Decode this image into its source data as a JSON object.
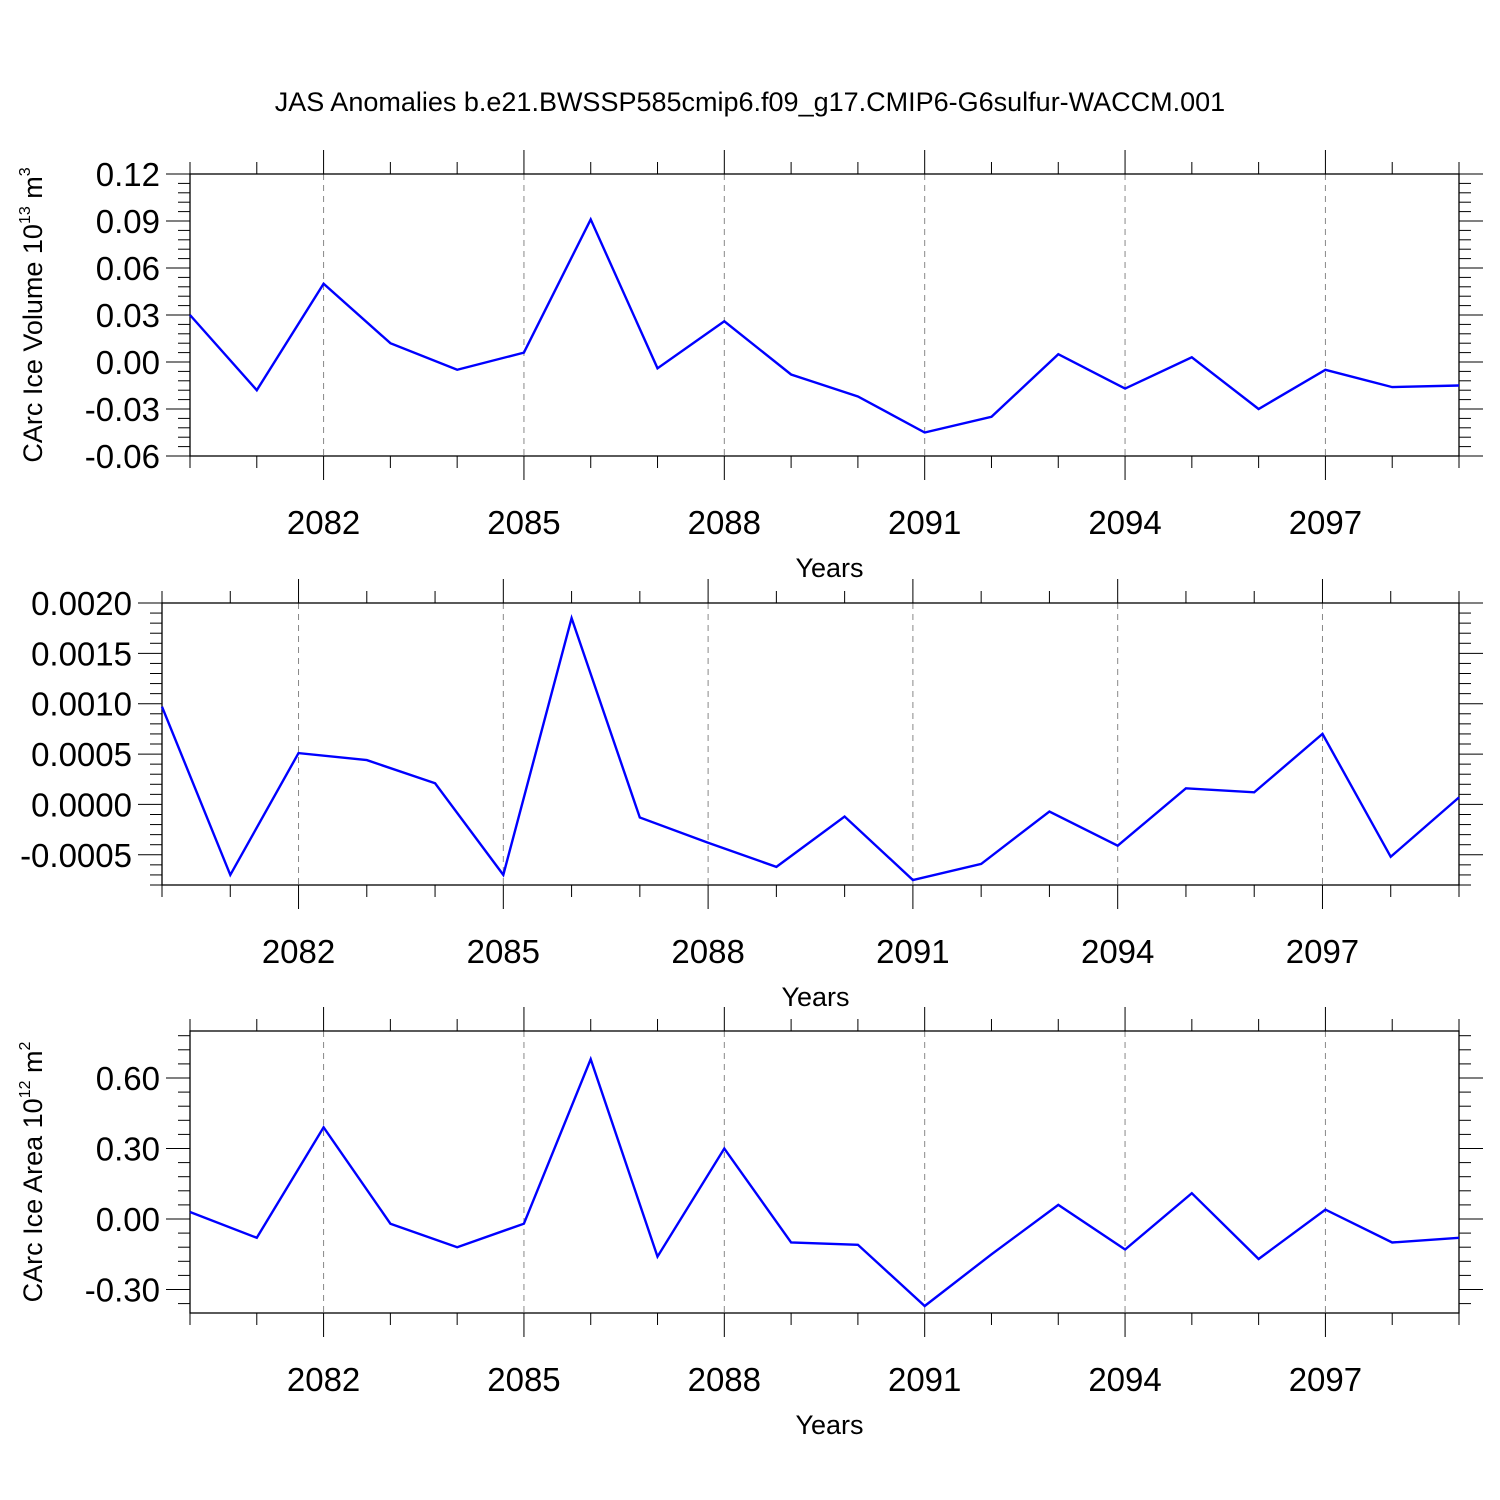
{
  "figure": {
    "title": "JAS Anomalies b.e21.BWSSP585cmip6.f09_g17.CMIP6-G6sulfur-WACCM.001"
  },
  "chart_data": [
    {
      "type": "line",
      "title": "",
      "ylabel": {
        "main": "CArc Ice Volume 10",
        "sup": "13",
        "unit": " m",
        "unit_sup": "3"
      },
      "xlabel": "Years",
      "x": [
        2080,
        2081,
        2082,
        2083,
        2084,
        2085,
        2086,
        2087,
        2088,
        2089,
        2090,
        2091,
        2092,
        2093,
        2094,
        2095,
        2096,
        2097,
        2098,
        2099
      ],
      "series": [
        {
          "values": [
            0.03,
            -0.018,
            0.05,
            0.012,
            -0.005,
            0.006,
            0.091,
            -0.004,
            0.026,
            -0.008,
            -0.022,
            -0.045,
            -0.035,
            0.005,
            -0.017,
            0.003,
            -0.03,
            -0.005,
            -0.016,
            -0.015
          ],
          "color": "#0000ff"
        }
      ],
      "xlim": [
        2080,
        2099
      ],
      "ylim": [
        -0.06,
        0.12
      ],
      "xticks": [
        2082,
        2085,
        2088,
        2091,
        2094,
        2097
      ],
      "xtick_labels": [
        "2082",
        "2085",
        "2088",
        "2091",
        "2094",
        "2097"
      ],
      "yticks": [
        -0.06,
        -0.03,
        0.0,
        0.03,
        0.06,
        0.09,
        0.12
      ],
      "ytick_labels": [
        "-0.06",
        "-0.03",
        "0.00",
        "0.03",
        "0.06",
        "0.09",
        "0.12"
      ],
      "grid": "vertical dashed at major x ticks"
    },
    {
      "type": "line",
      "title": "",
      "ylabel": {
        "main": "",
        "sup": "",
        "unit": "",
        "unit_sup": ""
      },
      "xlabel": "Years",
      "x": [
        2080,
        2081,
        2082,
        2083,
        2084,
        2085,
        2086,
        2087,
        2088,
        2089,
        2090,
        2091,
        2092,
        2093,
        2094,
        2095,
        2096,
        2097,
        2098,
        2099
      ],
      "series": [
        {
          "values": [
            0.00097,
            -0.0007,
            0.00051,
            0.00044,
            0.00021,
            -0.0007,
            0.00185,
            -0.00013,
            -0.00038,
            -0.00062,
            -0.00012,
            -0.00075,
            -0.00059,
            -7e-05,
            -0.00041,
            0.00016,
            0.00012,
            0.0007,
            -0.00052,
            7e-05
          ],
          "color": "#0000ff"
        }
      ],
      "xlim": [
        2080,
        2099
      ],
      "ylim": [
        -0.0008,
        0.002
      ],
      "xticks": [
        2082,
        2085,
        2088,
        2091,
        2094,
        2097
      ],
      "xtick_labels": [
        "2082",
        "2085",
        "2088",
        "2091",
        "2094",
        "2097"
      ],
      "yticks": [
        -0.0005,
        0.0,
        0.0005,
        0.001,
        0.0015,
        0.002
      ],
      "ytick_labels": [
        "-0.0005",
        "0.0000",
        "0.0005",
        "0.0010",
        "0.0015",
        "0.0020"
      ],
      "grid": "vertical dashed at major x ticks"
    },
    {
      "type": "line",
      "title": "",
      "ylabel": {
        "main": "CArc Ice Area 10",
        "sup": "12",
        "unit": " m",
        "unit_sup": "2"
      },
      "xlabel": "Years",
      "x": [
        2080,
        2081,
        2082,
        2083,
        2084,
        2085,
        2086,
        2087,
        2088,
        2089,
        2090,
        2091,
        2092,
        2093,
        2094,
        2095,
        2096,
        2097,
        2098,
        2099
      ],
      "series": [
        {
          "values": [
            0.03,
            -0.08,
            0.39,
            -0.02,
            -0.12,
            -0.02,
            0.68,
            -0.16,
            0.3,
            -0.1,
            -0.11,
            -0.37,
            -0.15,
            0.06,
            -0.13,
            0.11,
            -0.17,
            0.04,
            -0.1,
            -0.08
          ],
          "color": "#0000ff"
        }
      ],
      "xlim": [
        2080,
        2099
      ],
      "ylim": [
        -0.4,
        0.8
      ],
      "xticks": [
        2082,
        2085,
        2088,
        2091,
        2094,
        2097
      ],
      "xtick_labels": [
        "2082",
        "2085",
        "2088",
        "2091",
        "2094",
        "2097"
      ],
      "yticks": [
        -0.3,
        0.0,
        0.3,
        0.6
      ],
      "ytick_labels": [
        "-0.30",
        "0.00",
        "0.30",
        "0.60"
      ],
      "grid": "vertical dashed at major x ticks"
    }
  ]
}
